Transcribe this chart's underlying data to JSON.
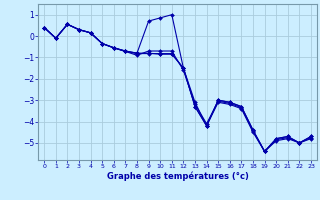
{
  "xlabel": "Graphe des températures (°c)",
  "bg_color": "#cceeff",
  "grid_color": "#aaccdd",
  "line_color": "#0000aa",
  "markersize": 2,
  "xlim": [
    -0.5,
    23.5
  ],
  "ylim": [
    -5.8,
    1.5
  ],
  "yticks": [
    -5,
    -4,
    -3,
    -2,
    -1,
    0,
    1
  ],
  "xticks": [
    0,
    1,
    2,
    3,
    4,
    5,
    6,
    7,
    8,
    9,
    10,
    11,
    12,
    13,
    14,
    15,
    16,
    17,
    18,
    19,
    20,
    21,
    22,
    23
  ],
  "series": [
    {
      "x": [
        0,
        1,
        2,
        3,
        4,
        5,
        6,
        7,
        8,
        9,
        10,
        11,
        12,
        13,
        14,
        15,
        16,
        17,
        18,
        19,
        20,
        21,
        22,
        23
      ],
      "y": [
        0.4,
        -0.1,
        0.55,
        0.3,
        0.15,
        -0.35,
        -0.55,
        -0.7,
        -0.8,
        0.7,
        0.85,
        1.0,
        -1.5,
        -3.3,
        -4.2,
        -3.0,
        -3.1,
        -3.3,
        -4.4,
        -5.4,
        -4.8,
        -4.7,
        -5.0,
        -4.7
      ]
    },
    {
      "x": [
        0,
        1,
        2,
        3,
        4,
        5,
        6,
        7,
        8,
        9,
        10,
        11,
        12,
        13,
        14,
        15,
        16,
        17,
        18,
        19,
        20,
        21,
        22,
        23
      ],
      "y": [
        0.4,
        -0.1,
        0.55,
        0.3,
        0.15,
        -0.35,
        -0.55,
        -0.7,
        -0.8,
        -0.8,
        -0.85,
        -0.85,
        -1.5,
        -3.3,
        -4.2,
        -3.0,
        -3.1,
        -3.3,
        -4.4,
        -5.4,
        -4.8,
        -4.7,
        -5.0,
        -4.7
      ]
    },
    {
      "x": [
        0,
        1,
        2,
        3,
        4,
        5,
        6,
        7,
        8,
        9,
        10,
        11,
        12,
        13,
        14,
        15,
        16,
        17,
        18,
        19,
        20,
        21,
        22,
        23
      ],
      "y": [
        0.4,
        -0.1,
        0.55,
        0.3,
        0.15,
        -0.35,
        -0.55,
        -0.72,
        -0.82,
        -0.82,
        -0.82,
        -0.82,
        -1.5,
        -3.1,
        -4.2,
        -3.1,
        -3.2,
        -3.4,
        -4.5,
        -5.4,
        -4.9,
        -4.8,
        -5.0,
        -4.8
      ]
    },
    {
      "x": [
        0,
        1,
        2,
        3,
        4,
        5,
        6,
        7,
        8,
        9,
        10,
        11,
        12,
        13,
        14,
        15,
        16,
        17,
        18,
        19,
        20,
        21,
        22,
        23
      ],
      "y": [
        0.4,
        -0.1,
        0.55,
        0.3,
        0.15,
        -0.35,
        -0.55,
        -0.72,
        -0.9,
        -0.7,
        -0.7,
        -0.7,
        -1.6,
        -3.2,
        -4.1,
        -3.05,
        -3.15,
        -3.35,
        -4.45,
        -5.4,
        -4.85,
        -4.75,
        -5.0,
        -4.75
      ]
    }
  ]
}
